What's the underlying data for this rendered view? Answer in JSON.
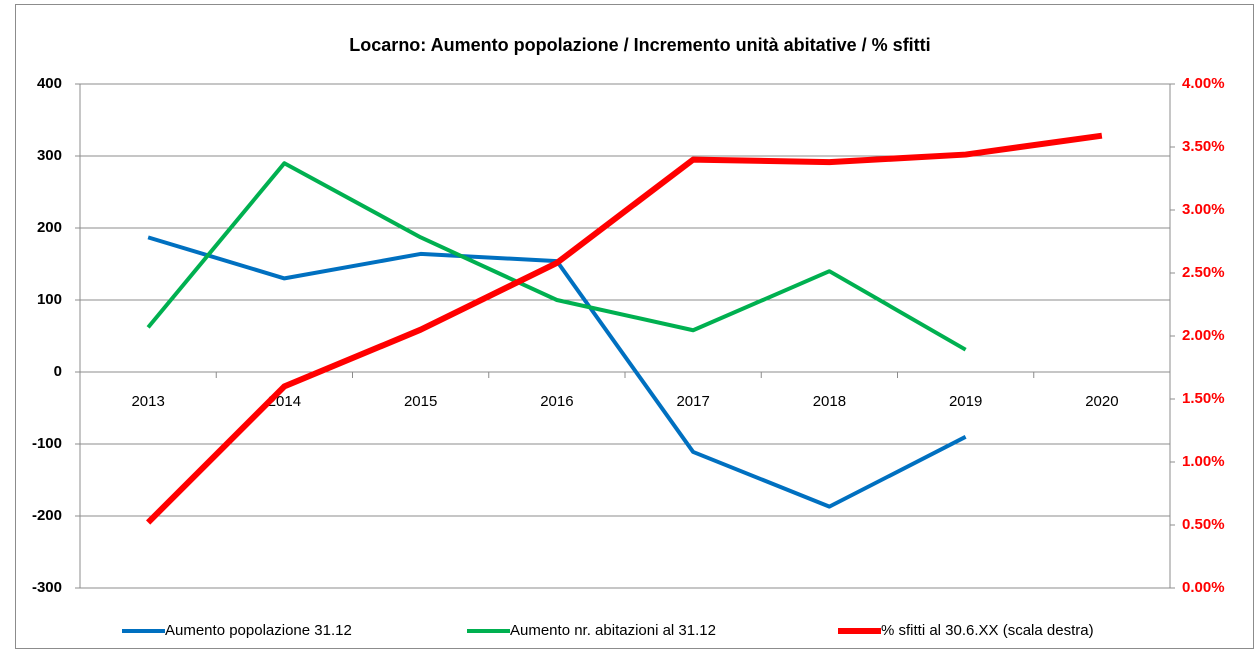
{
  "chart_data": {
    "type": "line",
    "title": "Locarno: Aumento popolazione / Incremento unità abitative / % sfitti",
    "categories": [
      "2013",
      "2014",
      "2015",
      "2016",
      "2017",
      "2018",
      "2019",
      "2020"
    ],
    "series": [
      {
        "name": "Aumento popolazione 31.12",
        "color": "#0070c0",
        "values": [
          187,
          130,
          164,
          154,
          -111,
          -187,
          -90,
          null
        ]
      },
      {
        "name": "Aumento nr. abitazioni al 31.12",
        "color": "#00b050",
        "values": [
          62,
          290,
          187,
          100,
          58,
          140,
          31,
          null
        ]
      },
      {
        "name": "% sfitti al 30.6.XX (scala destra)",
        "color": "#ff0000",
        "axis": "y2",
        "values": [
          0.52,
          1.6,
          2.05,
          2.58,
          3.4,
          3.38,
          3.44,
          3.59
        ]
      }
    ],
    "ylim": [
      -300,
      400
    ],
    "yticks": [
      -300,
      -200,
      -100,
      0,
      100,
      200,
      300,
      400
    ],
    "y2lim": [
      0,
      4
    ],
    "y2ticks": [
      {
        "value": 0,
        "label": "0.00%"
      },
      {
        "value": 0.5,
        "label": "0.50%"
      },
      {
        "value": 1,
        "label": "1.00%"
      },
      {
        "value": 1.5,
        "label": "1.50%"
      },
      {
        "value": 2,
        "label": "2.00%"
      },
      {
        "value": 2.5,
        "label": "2.50%"
      },
      {
        "value": 3,
        "label": "3.00%"
      },
      {
        "value": 3.5,
        "label": "3.50%"
      },
      {
        "value": 4,
        "label": "4.00%"
      }
    ],
    "y2color": "#ff0000",
    "grid": true,
    "legend": "bottom"
  }
}
